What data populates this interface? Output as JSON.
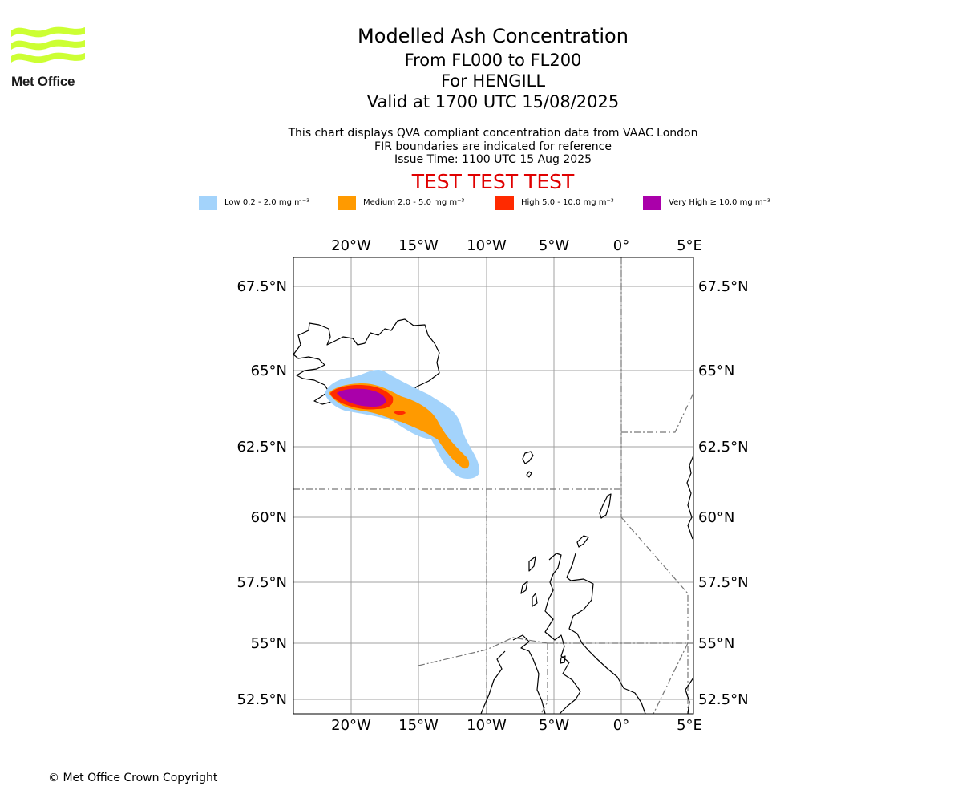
{
  "logo": {
    "text": "Met Office",
    "color": "#ccff33"
  },
  "title": {
    "main": "Modelled Ash Concentration",
    "levels": "From FL000 to FL200",
    "volcano": "For HENGILL",
    "valid": "Valid at 1700 UTC 15/08/2025"
  },
  "notes": {
    "line1": "This chart displays QVA compliant concentration data from VAAC London",
    "line2": "FIR boundaries are indicated for reference",
    "issue": "Issue Time: 1100 UTC 15 Aug 2025"
  },
  "test_banner": "TEST TEST TEST",
  "legend": {
    "low": {
      "label": "Low 0.2 - 2.0 mg m⁻³",
      "color": "#a3d3fb"
    },
    "medium": {
      "label": "Medium 2.0 - 5.0 mg m⁻³",
      "color": "#ff9a00"
    },
    "high": {
      "label": "High 5.0 - 10.0 mg m⁻³",
      "color": "#ff2a00"
    },
    "very_high": {
      "label": "Very High ≥ 10.0 mg m⁻³",
      "color": "#aa00aa"
    }
  },
  "map": {
    "lon_labels": [
      "20°W",
      "15°W",
      "10°W",
      "5°W",
      "0°",
      "5°E"
    ],
    "lat_labels": [
      "67.5°N",
      "65°N",
      "62.5°N",
      "60°N",
      "57.5°N",
      "55°N",
      "52.5°N"
    ]
  },
  "copyright": "© Met Office Crown Copyright"
}
